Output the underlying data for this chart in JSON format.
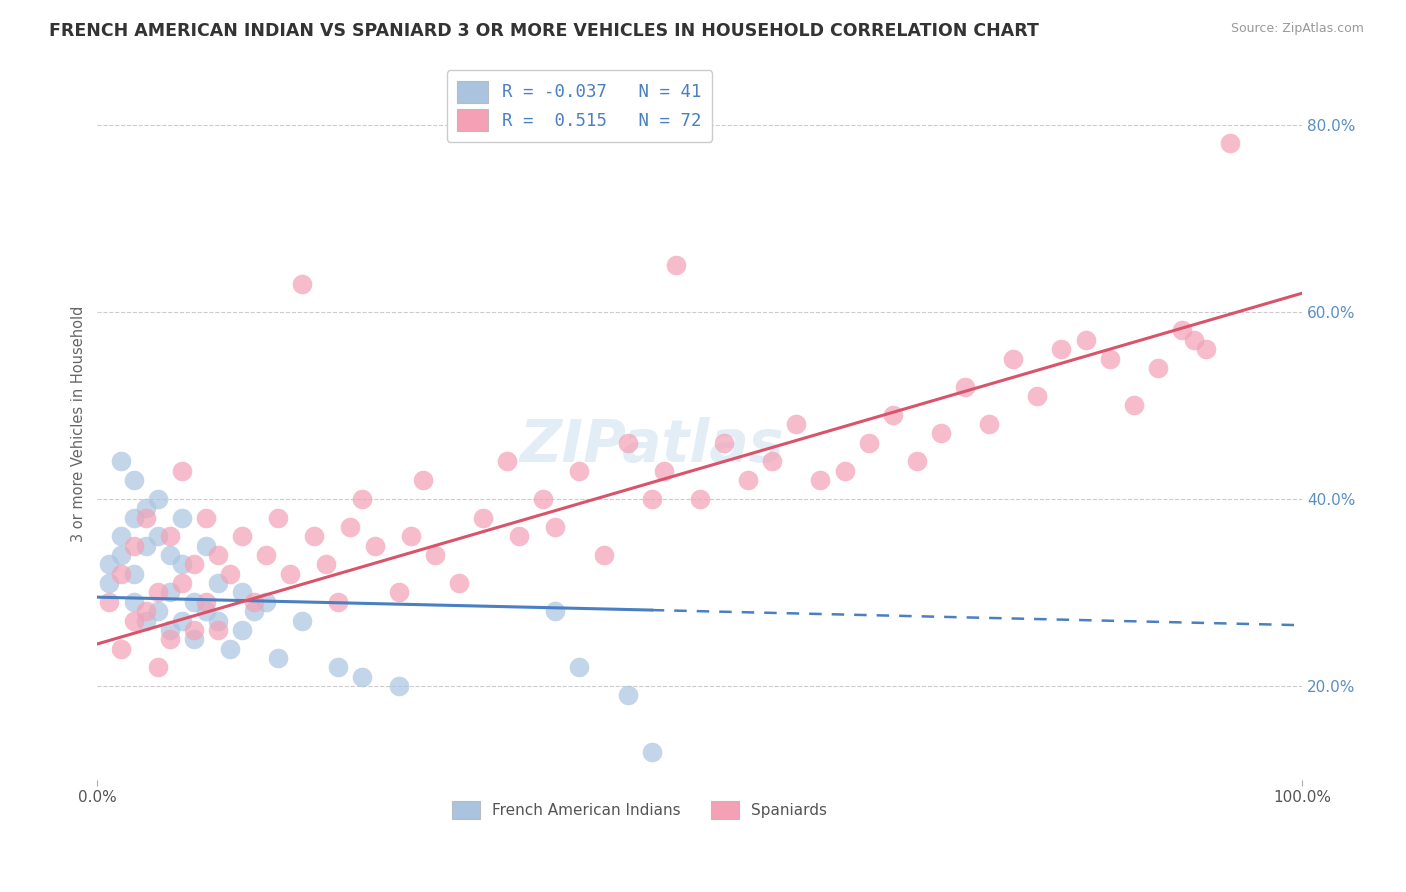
{
  "title": "FRENCH AMERICAN INDIAN VS SPANIARD 3 OR MORE VEHICLES IN HOUSEHOLD CORRELATION CHART",
  "source": "Source: ZipAtlas.com",
  "ylabel": "3 or more Vehicles in Household",
  "y_ticks": [
    0.2,
    0.4,
    0.6,
    0.8
  ],
  "y_tick_labels": [
    "20.0%",
    "40.0%",
    "60.0%",
    "80.0%"
  ],
  "legend_label1": "French American Indians",
  "legend_label2": "Spaniards",
  "R1": -0.037,
  "N1": 41,
  "R2": 0.515,
  "N2": 72,
  "color_blue": "#aac4e0",
  "color_pink": "#f4a0b5",
  "color_blue_line": "#4a7fc1",
  "color_pink_line": "#d9536a",
  "watermark": "ZIPatlas",
  "blue_x": [
    0.01,
    0.01,
    0.02,
    0.02,
    0.02,
    0.03,
    0.03,
    0.03,
    0.03,
    0.04,
    0.04,
    0.04,
    0.05,
    0.05,
    0.05,
    0.06,
    0.06,
    0.06,
    0.07,
    0.07,
    0.07,
    0.08,
    0.08,
    0.09,
    0.09,
    0.1,
    0.1,
    0.11,
    0.12,
    0.12,
    0.13,
    0.14,
    0.15,
    0.17,
    0.2,
    0.22,
    0.25,
    0.38,
    0.4,
    0.44,
    0.46
  ],
  "blue_y": [
    0.31,
    0.33,
    0.34,
    0.36,
    0.44,
    0.29,
    0.32,
    0.38,
    0.42,
    0.27,
    0.35,
    0.39,
    0.28,
    0.36,
    0.4,
    0.26,
    0.3,
    0.34,
    0.27,
    0.33,
    0.38,
    0.25,
    0.29,
    0.28,
    0.35,
    0.27,
    0.31,
    0.24,
    0.26,
    0.3,
    0.28,
    0.29,
    0.23,
    0.27,
    0.22,
    0.21,
    0.2,
    0.28,
    0.22,
    0.19,
    0.13
  ],
  "pink_x": [
    0.01,
    0.02,
    0.02,
    0.03,
    0.03,
    0.04,
    0.04,
    0.05,
    0.05,
    0.06,
    0.06,
    0.07,
    0.07,
    0.08,
    0.08,
    0.09,
    0.09,
    0.1,
    0.1,
    0.11,
    0.12,
    0.13,
    0.14,
    0.15,
    0.16,
    0.17,
    0.18,
    0.19,
    0.2,
    0.21,
    0.22,
    0.23,
    0.25,
    0.26,
    0.27,
    0.28,
    0.3,
    0.32,
    0.34,
    0.35,
    0.37,
    0.38,
    0.4,
    0.42,
    0.44,
    0.46,
    0.47,
    0.48,
    0.5,
    0.52,
    0.54,
    0.56,
    0.58,
    0.6,
    0.62,
    0.64,
    0.66,
    0.68,
    0.7,
    0.72,
    0.74,
    0.76,
    0.78,
    0.8,
    0.82,
    0.84,
    0.86,
    0.88,
    0.9,
    0.91,
    0.92,
    0.94
  ],
  "pink_y": [
    0.29,
    0.24,
    0.32,
    0.27,
    0.35,
    0.28,
    0.38,
    0.22,
    0.3,
    0.25,
    0.36,
    0.31,
    0.43,
    0.26,
    0.33,
    0.29,
    0.38,
    0.26,
    0.34,
    0.32,
    0.36,
    0.29,
    0.34,
    0.38,
    0.32,
    0.63,
    0.36,
    0.33,
    0.29,
    0.37,
    0.4,
    0.35,
    0.3,
    0.36,
    0.42,
    0.34,
    0.31,
    0.38,
    0.44,
    0.36,
    0.4,
    0.37,
    0.43,
    0.34,
    0.46,
    0.4,
    0.43,
    0.65,
    0.4,
    0.46,
    0.42,
    0.44,
    0.48,
    0.42,
    0.43,
    0.46,
    0.49,
    0.44,
    0.47,
    0.52,
    0.48,
    0.55,
    0.51,
    0.56,
    0.57,
    0.55,
    0.5,
    0.54,
    0.58,
    0.57,
    0.56,
    0.78
  ]
}
